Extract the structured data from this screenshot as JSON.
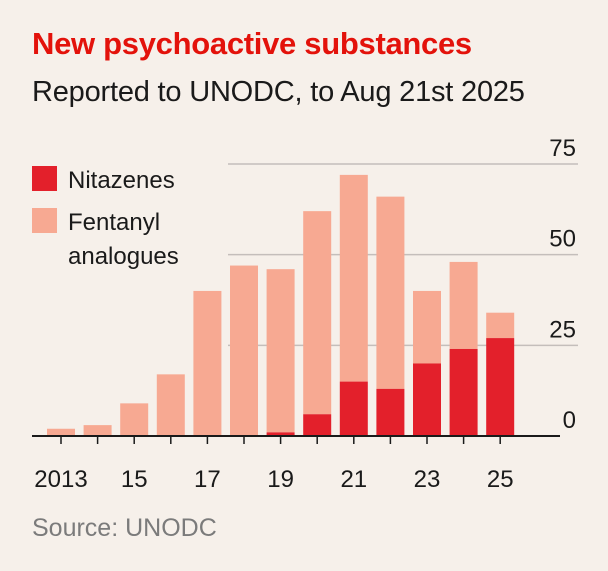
{
  "title": "New psychoactive substances",
  "subtitle": "Reported to UNODC, to Aug 21st 2025",
  "source": "Source: UNODC",
  "colors": {
    "nitazenes": "#e3202b",
    "fentanyl": "#f7a992",
    "title": "#e3120b",
    "grid": "#c4bebb"
  },
  "chart_data": {
    "type": "bar",
    "stacked": true,
    "categories": [
      "2013",
      "2014",
      "2015",
      "2016",
      "2017",
      "2018",
      "2019",
      "2020",
      "2021",
      "2022",
      "2023",
      "2024",
      "2025"
    ],
    "x_tick_labels": [
      "2013",
      "",
      "15",
      "",
      "17",
      "",
      "19",
      "",
      "21",
      "",
      "23",
      "",
      "25"
    ],
    "series": [
      {
        "name": "Nitazenes",
        "values": [
          0,
          0,
          0,
          0,
          0,
          0,
          1,
          6,
          15,
          13,
          20,
          24,
          27
        ]
      },
      {
        "name": "Fentanyl analogues",
        "values": [
          2,
          3,
          9,
          17,
          40,
          47,
          45,
          56,
          57,
          53,
          20,
          24,
          7
        ]
      }
    ],
    "ylim": [
      0,
      75
    ],
    "y_ticks": [
      "0",
      "25",
      "50",
      "75"
    ],
    "y_tick_values": [
      0,
      25,
      50,
      75
    ],
    "grid": true,
    "y_axis_side": "right",
    "legend": {
      "placement": "top-left",
      "entries": [
        {
          "lines": [
            "Nitazenes"
          ]
        },
        {
          "lines": [
            "Fentanyl",
            "analogues"
          ]
        }
      ]
    }
  }
}
